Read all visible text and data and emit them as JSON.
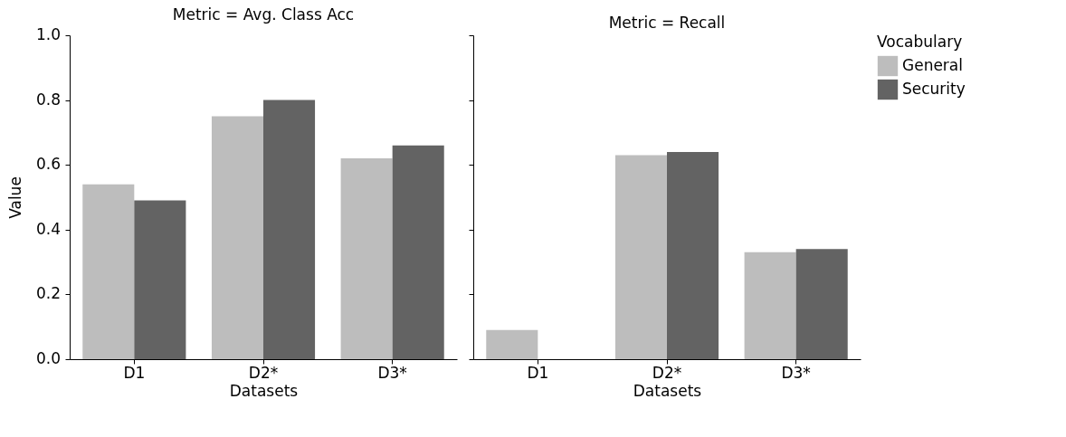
{
  "chart_data": [
    {
      "type": "bar",
      "title": "Metric = Avg. Class Acc",
      "xlabel": "Datasets",
      "ylabel": "Value",
      "categories": [
        "D1",
        "D2*",
        "D3*"
      ],
      "series": [
        {
          "name": "General",
          "color": "#bdbdbd",
          "values": [
            0.54,
            0.75,
            0.62
          ]
        },
        {
          "name": "Security",
          "color": "#636363",
          "values": [
            0.49,
            0.8,
            0.66
          ]
        }
      ],
      "ylim": [
        0,
        1.0
      ],
      "yticks": [
        {
          "value": 0,
          "label": "0.0"
        },
        0.2,
        0.4,
        0.6,
        0.8,
        {
          "value": 1.0,
          "label": "1.0"
        }
      ],
      "grid": false,
      "legend": "right"
    },
    {
      "type": "bar",
      "title": "Metric = Recall",
      "xlabel": "Datasets",
      "categories": [
        "D1",
        "D2*",
        "D3*"
      ],
      "series": [
        {
          "name": "General",
          "color": "#bdbdbd",
          "values": [
            0.09,
            0.63,
            0.33
          ]
        },
        {
          "name": "Security",
          "color": "#636363",
          "values": [
            0,
            0.64,
            0.34
          ]
        }
      ],
      "ylim": [
        0,
        1.0
      ],
      "yticks": [
        {
          "value": 0,
          "label": null
        },
        {
          "value": 0.2,
          "label": null
        },
        {
          "value": 0.4,
          "label": null
        },
        {
          "value": 0.6,
          "label": null
        },
        {
          "value": 0.8,
          "label": null
        },
        {
          "value": 1.0,
          "label": null
        }
      ],
      "grid": false,
      "tick_labels": "x",
      "legend": "right",
      "legend_title": "Vocabulary"
    }
  ]
}
